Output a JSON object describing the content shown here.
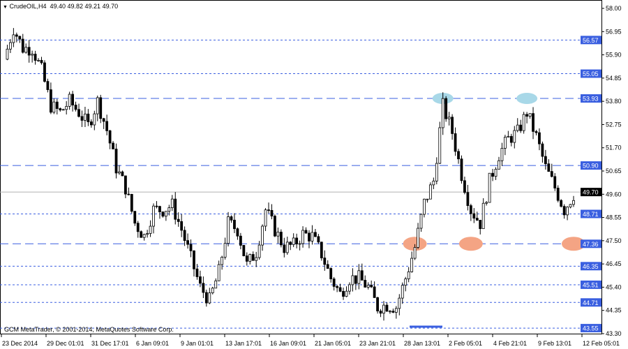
{
  "header": {
    "symbol": "CrudeOIL,H4",
    "ohlc": "49.40 49.82 49.21 49.70",
    "menu_icon": "triangle-down-icon"
  },
  "footer": {
    "copyright": "GCM MetaTrader, © 2001-2014, MetaQuotes Software Corp."
  },
  "colors": {
    "level_line": "#3a5fe0",
    "current_price_line": "#b0b0b0",
    "top_marker": "#a8d8e8",
    "bottom_marker": "#f4a484",
    "candle": "#000000"
  },
  "chart_data": {
    "type": "candlestick",
    "ylim": [
      43.3,
      58.0
    ],
    "y_ticks": [
      "58.00",
      "56.95",
      "55.90",
      "54.85",
      "53.80",
      "52.75",
      "51.70",
      "50.65",
      "49.60",
      "48.55",
      "47.50",
      "46.45",
      "45.40",
      "44.35",
      "43.30"
    ],
    "x_ticks": [
      "23 Dec 2014",
      "29 Dec 01:01",
      "31 Dec 17:01",
      "6 Jan 09:01",
      "9 Jan 01:01",
      "13 Jan 17:01",
      "16 Jan 09:01",
      "21 Jan 05:01",
      "23 Jan 21:01",
      "28 Jan 13:01",
      "2 Feb 05:01",
      "4 Feb 21:01",
      "9 Feb 13:01",
      "12 Feb 05:01"
    ],
    "closes": [
      55.7,
      57.1,
      56.2,
      56.2,
      55.2,
      53.6,
      53.3,
      53.8,
      53.3,
      52.7,
      53.8,
      52.5,
      50.8,
      49.9,
      48.3,
      47.7,
      48.9,
      48.9,
      49.1,
      48.0,
      46.7,
      45.4,
      44.8,
      46.1,
      48.3,
      48.0,
      46.4,
      47.0,
      48.9,
      48.0,
      47.2,
      47.3,
      47.8,
      47.7,
      46.9,
      45.8,
      45.1,
      45.8,
      45.8,
      45.4,
      44.5,
      44.6,
      44.5,
      45.8,
      47.2,
      49.2,
      50.2,
      53.6,
      52.4,
      50.5,
      48.9,
      48.3,
      50.2,
      51.4,
      52.1,
      52.4,
      53.3,
      52.2,
      50.8,
      49.9,
      48.9,
      49.6
    ],
    "current_price": "49.70",
    "levels": [
      {
        "price": "56.57",
        "style": "short-dash"
      },
      {
        "price": "55.05",
        "style": "short-dash"
      },
      {
        "price": "53.93",
        "style": "long-dash"
      },
      {
        "price": "50.90",
        "style": "long-dash"
      },
      {
        "price": "48.71",
        "style": "short-dash"
      },
      {
        "price": "47.36",
        "style": "long-dash"
      },
      {
        "price": "46.35",
        "style": "short-dash"
      },
      {
        "price": "45.51",
        "style": "short-dash"
      },
      {
        "price": "44.71",
        "style": "short-dash"
      },
      {
        "price": "43.55",
        "style": "short-dash"
      }
    ],
    "markers": [
      {
        "kind": "top",
        "price": 53.93,
        "index": 47
      },
      {
        "kind": "top",
        "price": 53.93,
        "index": 56
      },
      {
        "kind": "bottom",
        "price": 47.36,
        "index": 44
      },
      {
        "kind": "bottom",
        "price": 47.36,
        "index": 50
      },
      {
        "kind": "bottom",
        "price": 47.36,
        "index": 61
      }
    ]
  }
}
